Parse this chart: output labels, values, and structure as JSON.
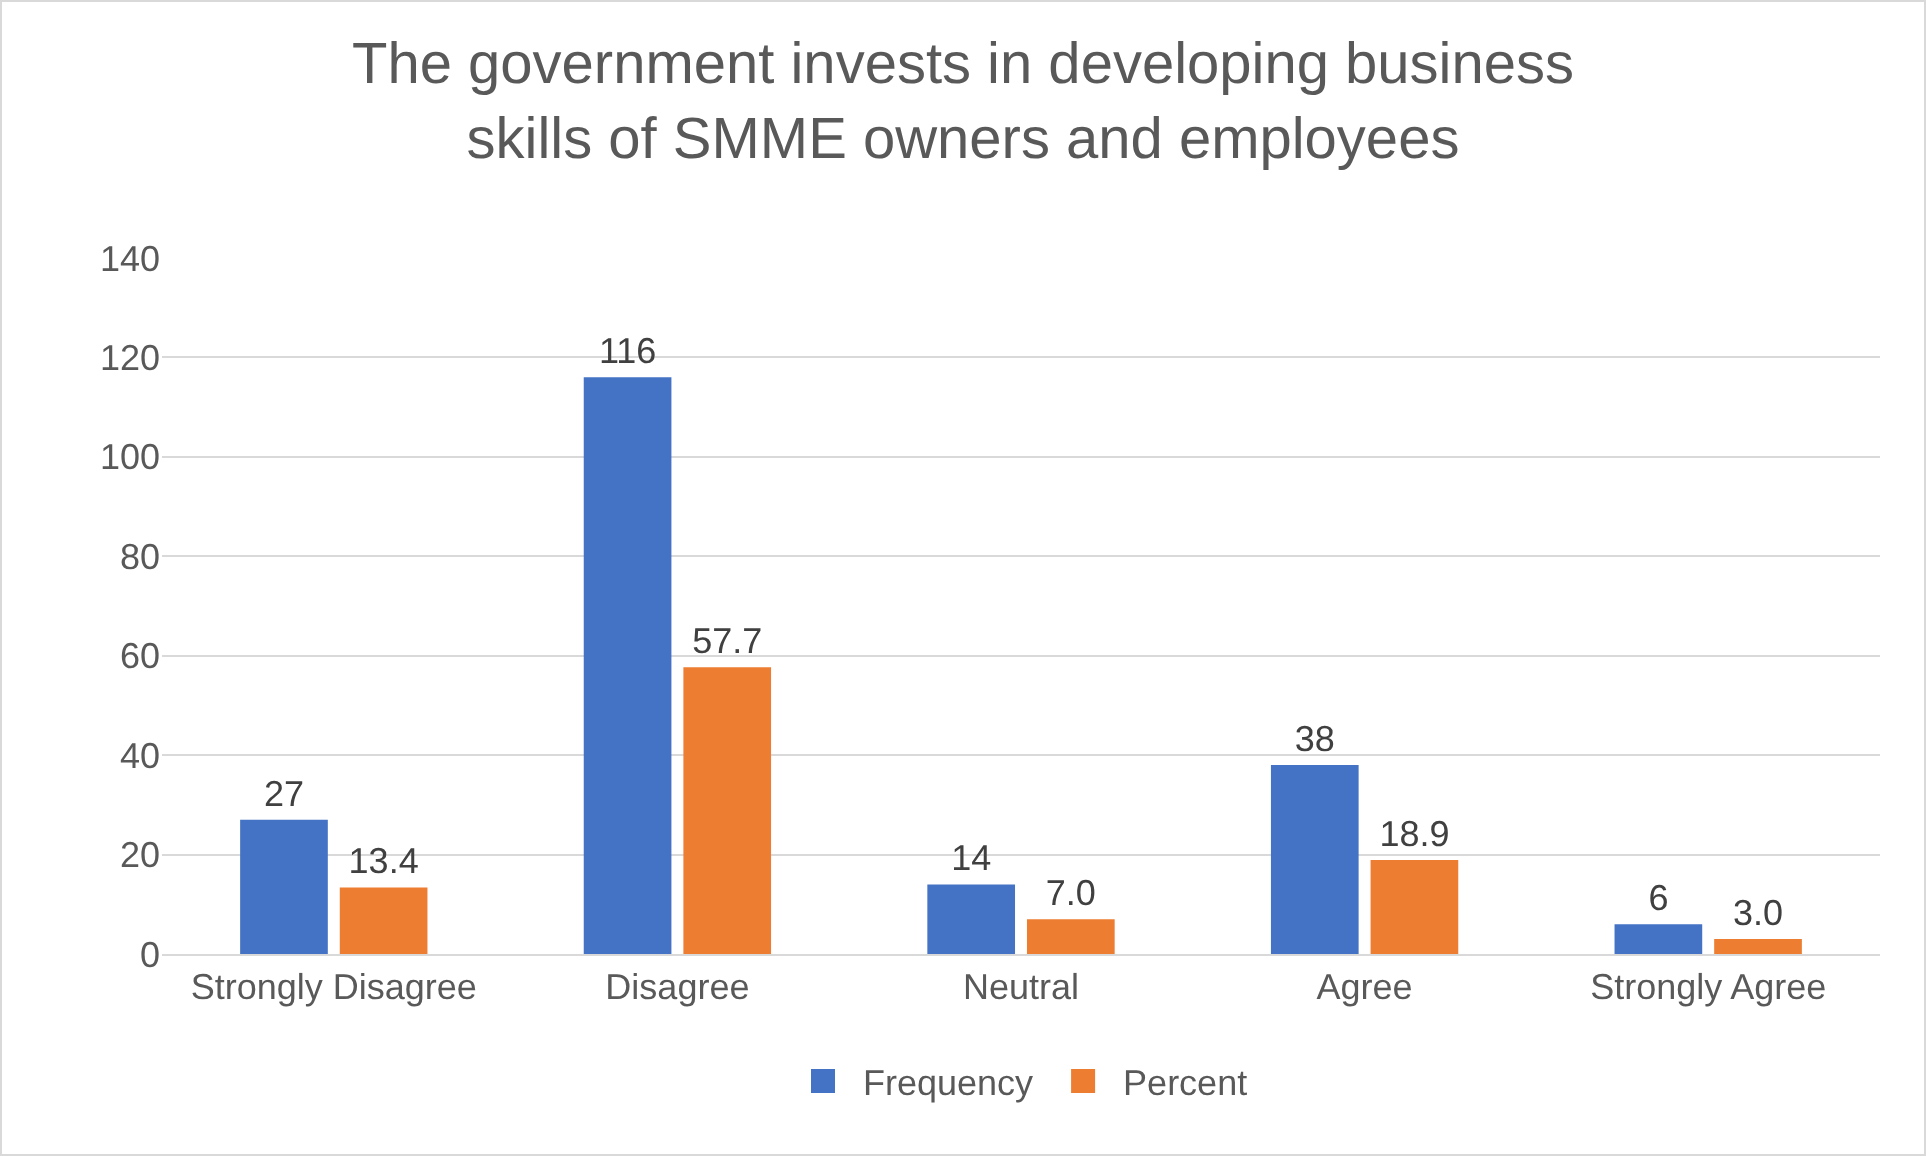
{
  "chart_data": {
    "type": "bar",
    "title": "The government invests in developing business skills of SMME owners and employees",
    "categories": [
      "Strongly Disagree",
      "Disagree",
      "Neutral",
      "Agree",
      "Strongly Agree"
    ],
    "series": [
      {
        "name": "Frequency",
        "color": "#4472c4",
        "values": [
          27,
          116,
          14,
          38,
          6
        ],
        "value_labels": [
          "27",
          "116",
          "14",
          "38",
          "6"
        ]
      },
      {
        "name": "Percent",
        "color": "#ed7d31",
        "values": [
          13.4,
          57.7,
          7.0,
          18.9,
          3.0
        ],
        "value_labels": [
          "13.4",
          "57.7",
          "7.0",
          "18.9",
          "3.0"
        ]
      }
    ],
    "ylim": [
      0,
      140
    ],
    "yticks": [
      0,
      20,
      40,
      60,
      80,
      100,
      120,
      140
    ],
    "grid": "y",
    "legend": "bottom"
  }
}
